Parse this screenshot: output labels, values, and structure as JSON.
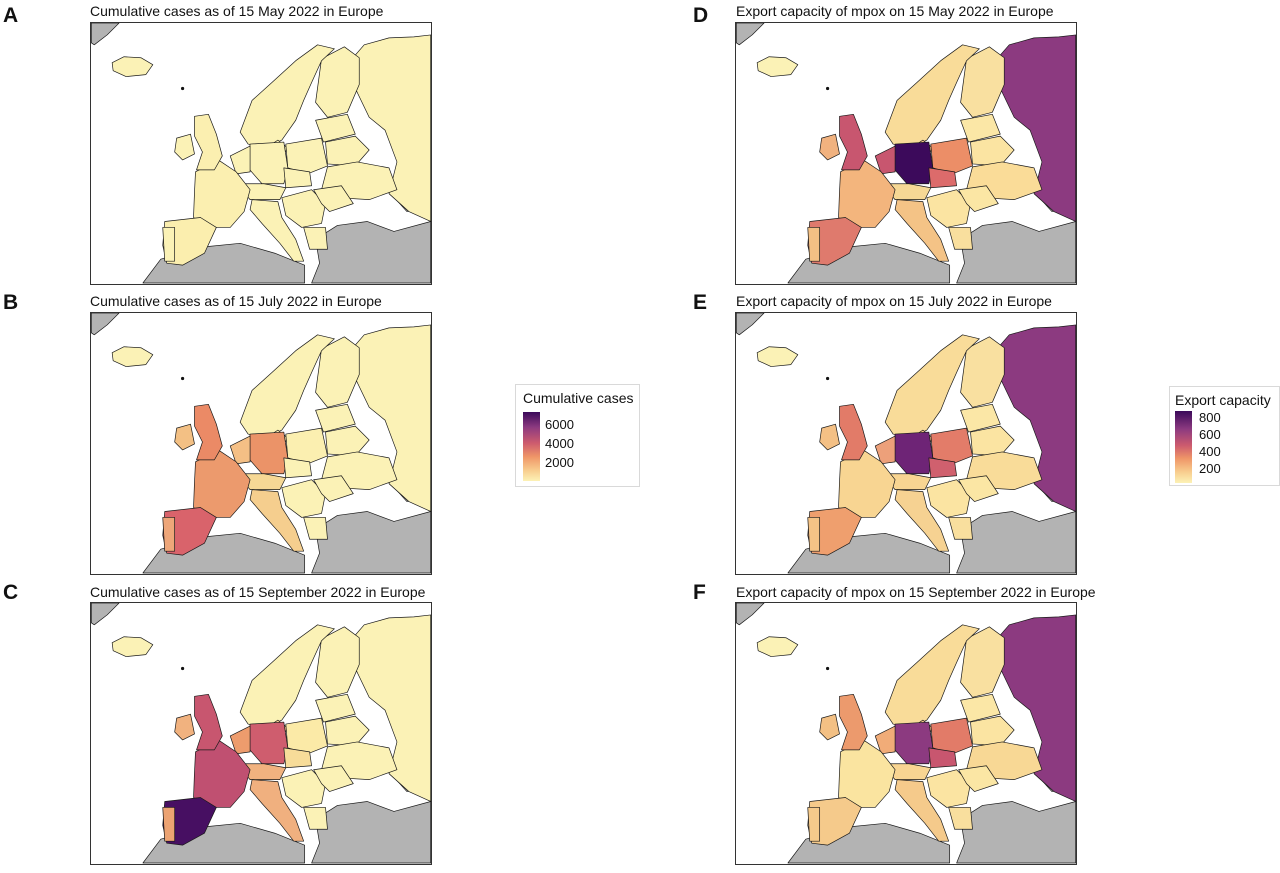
{
  "panels": [
    {
      "letter": "A",
      "title": "Cumulative cases as of 15 May 2022 in Europe",
      "fills": {
        "iceland": "#fbf2b6",
        "uk": "#fbefb0",
        "ireland": "#fbf2b6",
        "iberia": "#fbeeae",
        "portugal": "#fbf2b6",
        "france": "#fbefb0",
        "benelux": "#fbf2b6",
        "germany": "#fbf2b6",
        "poland": "#fbf2b6",
        "czech": "#fbf2b6",
        "alps": "#fbf2b6",
        "italy": "#fbf2b6",
        "balkans": "#fbf2b6",
        "romania": "#fbf2b6",
        "ukraine": "#fbf2b6",
        "belarus": "#fbf2b6",
        "baltics": "#fbf2b6",
        "scandinavia": "#fbf2b6",
        "finland": "#fbf2b6",
        "russia": "#fbf2b6",
        "denmark": "#fbf2b6",
        "greece": "#fbf2b6"
      }
    },
    {
      "letter": "B",
      "title": "Cumulative cases as of 15 July 2022 in Europe",
      "fills": {
        "iceland": "#fbf2b6",
        "uk": "#eb8a66",
        "ireland": "#f3c084",
        "iberia": "#d9636b",
        "portugal": "#eea679",
        "france": "#ec9a6d",
        "benelux": "#f4bf85",
        "germany": "#eb9368",
        "poland": "#fbefb0",
        "czech": "#fbf2b6",
        "alps": "#f6d895",
        "italy": "#f5ce8e",
        "balkans": "#fbf2b6",
        "romania": "#fbf2b6",
        "ukraine": "#fbf2b6",
        "belarus": "#fbf2b6",
        "baltics": "#fbf2b6",
        "scandinavia": "#fbf2b6",
        "finland": "#fbf2b6",
        "russia": "#fbf2b6",
        "denmark": "#fbeeae",
        "greece": "#fbf2b6"
      }
    },
    {
      "letter": "C",
      "title": "Cumulative cases as of 15 September 2022 in Europe",
      "fills": {
        "iceland": "#fbf2b6",
        "uk": "#c8566f",
        "ireland": "#f1b27f",
        "iberia": "#470f62",
        "portugal": "#eca372",
        "france": "#c05071",
        "benelux": "#ed9c6d",
        "germany": "#cf5d6e",
        "poland": "#fbeaa7",
        "czech": "#f7dc99",
        "alps": "#f1b27f",
        "italy": "#f0b07f",
        "balkans": "#fbf2b6",
        "romania": "#fbf2b6",
        "ukraine": "#fbf2b6",
        "belarus": "#fbf2b6",
        "baltics": "#fbf2b6",
        "scandinavia": "#fbf2b6",
        "finland": "#fbf2b6",
        "russia": "#fbf2b6",
        "denmark": "#f6d392",
        "greece": "#fbf2b6"
      }
    },
    {
      "letter": "D",
      "title": "Export capacity of mpox on 15 May 2022 in Europe",
      "fills": {
        "iceland": "#fbf2b6",
        "uk": "#c8566f",
        "ireland": "#f1b27f",
        "iberia": "#df7a6d",
        "portugal": "#f3c084",
        "france": "#f3b57d",
        "benelux": "#c8566f",
        "germany": "#3c0a5b",
        "poland": "#ec8e67",
        "czech": "#dc6b6b",
        "alps": "#f6d895",
        "italy": "#f4c386",
        "balkans": "#fbe4a2",
        "romania": "#fbe6a4",
        "ukraine": "#fadc98",
        "belarus": "#fbe4a2",
        "baltics": "#fbe7a6",
        "scandinavia": "#f9dc99",
        "finland": "#f9e0a0",
        "russia": "#8c3a80",
        "denmark": "#f4c386",
        "greece": "#f9df9e"
      }
    },
    {
      "letter": "E",
      "title": "Export capacity of mpox on 15 July 2022 in Europe",
      "fills": {
        "iceland": "#fbf2b6",
        "uk": "#e27b68",
        "ireland": "#f4c085",
        "iberia": "#ef9f6e",
        "portugal": "#f4c386",
        "france": "#f8d592",
        "benelux": "#eda07a",
        "germany": "#6e2476",
        "poland": "#e37c69",
        "czech": "#d0606e",
        "alps": "#f8d592",
        "italy": "#f6d292",
        "balkans": "#fbe4a2",
        "romania": "#fbe6a4",
        "ukraine": "#f9dc99",
        "belarus": "#fbe4a2",
        "baltics": "#fbe7a6",
        "scandinavia": "#f9dc99",
        "finland": "#f9e0a0",
        "russia": "#8c3a80",
        "denmark": "#f4c386",
        "greece": "#f9df9e"
      }
    },
    {
      "letter": "F",
      "title": "Export capacity of mpox on 15 September 2022 in Europe",
      "fills": {
        "iceland": "#fbf2b6",
        "uk": "#ec9a6d",
        "ireland": "#f3c084",
        "iberia": "#f5ca8b",
        "portugal": "#f5ca8b",
        "france": "#fae4a0",
        "benelux": "#f1ac78",
        "germany": "#8c3a80",
        "poland": "#e27b68",
        "czech": "#c8566f",
        "alps": "#f8d592",
        "italy": "#f5ca8b",
        "balkans": "#fbe4a2",
        "romania": "#fbe6a4",
        "ukraine": "#f8d895",
        "belarus": "#fbe4a2",
        "baltics": "#fbe7a6",
        "scandinavia": "#f9dc99",
        "finland": "#f9e0a0",
        "russia": "#8c3a80",
        "denmark": "#f4c386",
        "greece": "#f9df9e"
      }
    }
  ],
  "legend_cases": {
    "title": "Cumulative cases",
    "ticks": [
      "6000",
      "4000",
      "2000"
    ]
  },
  "legend_export": {
    "title": "Export capacity",
    "ticks": [
      "800",
      "600",
      "400",
      "200"
    ]
  },
  "colors": {
    "non_europe": "#b3b3b3",
    "border": "#1a1a1a",
    "sea": "#ffffff"
  }
}
